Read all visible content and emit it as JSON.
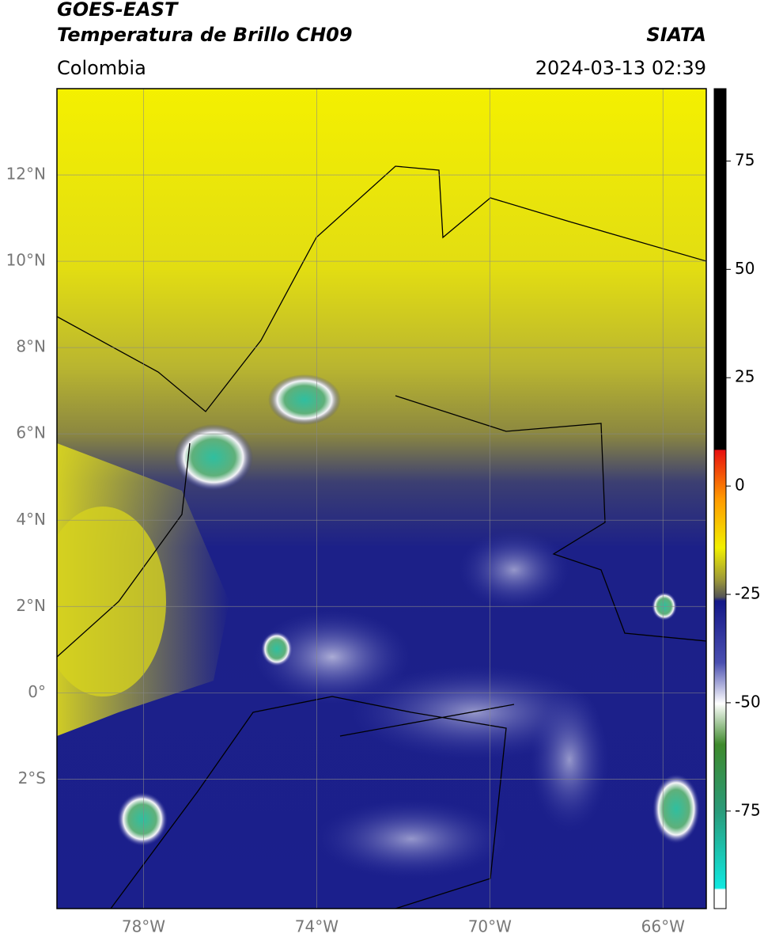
{
  "header": {
    "title": "GOES-EAST",
    "subtitle": "Temperatura de Brillo CH09",
    "region": "Colombia",
    "source": "SIATA",
    "timestamp": "2024-03-13 02:39"
  },
  "map": {
    "lon_range": [
      -80,
      -65
    ],
    "lat_range": [
      -5,
      14
    ],
    "lon_ticks": [
      {
        "value": -78,
        "label": "78°W"
      },
      {
        "value": -74,
        "label": "74°W"
      },
      {
        "value": -70,
        "label": "70°W"
      },
      {
        "value": -66,
        "label": "66°W"
      }
    ],
    "lat_ticks": [
      {
        "value": 12,
        "label": "12°N"
      },
      {
        "value": 10,
        "label": "10°N"
      },
      {
        "value": 8,
        "label": "8°N"
      },
      {
        "value": 6,
        "label": "6°N"
      },
      {
        "value": 4,
        "label": "4°N"
      },
      {
        "value": 2,
        "label": "2°N"
      },
      {
        "value": 0,
        "label": "0°"
      },
      {
        "value": -2,
        "label": "2°S"
      }
    ]
  },
  "colorbar": {
    "range": [
      -97.5,
      91.7
    ],
    "ticks": [
      75,
      50,
      25,
      0,
      -25,
      -50,
      -75
    ]
  }
}
